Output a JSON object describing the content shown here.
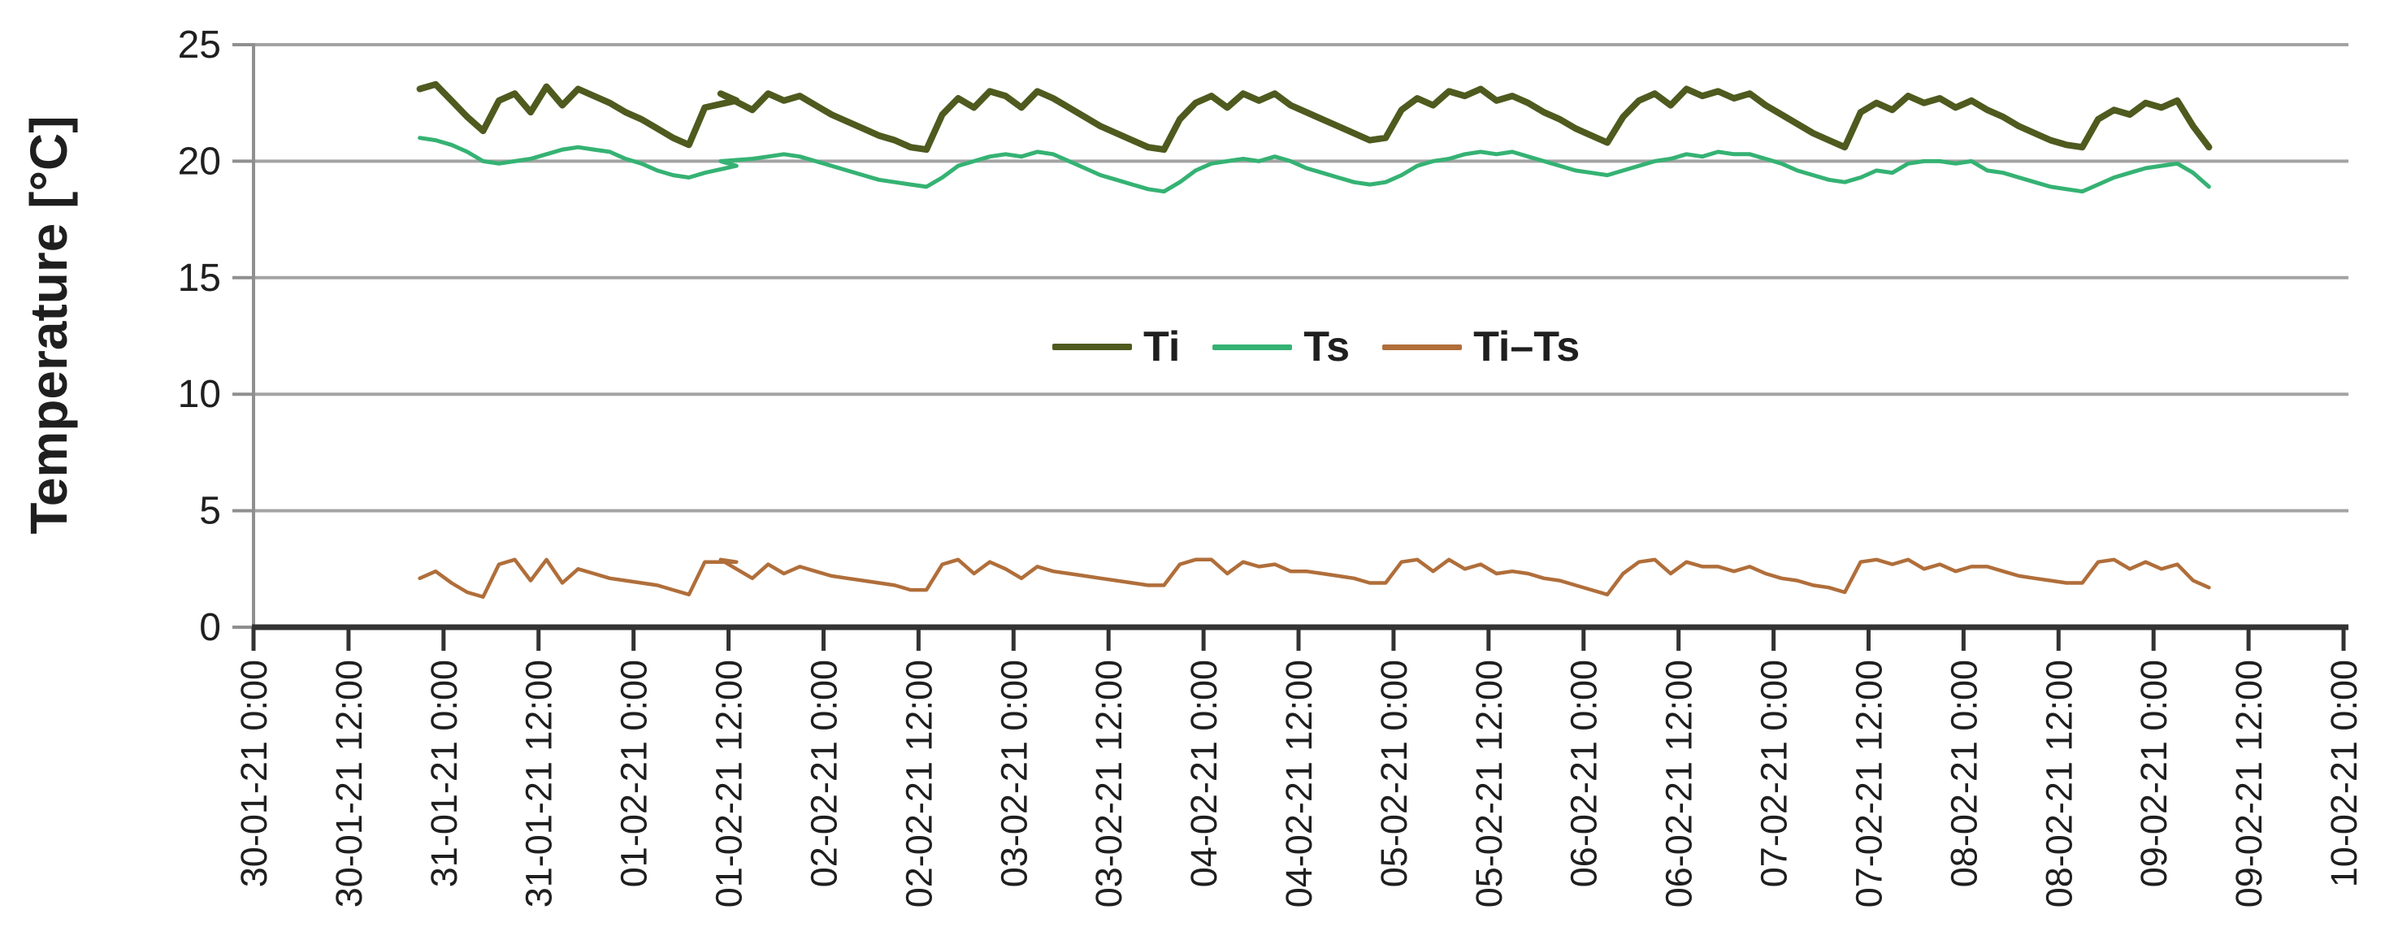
{
  "chart_data": {
    "type": "line",
    "title": "",
    "xlabel": "",
    "ylabel": "Temperature [°C]",
    "ylim": [
      0,
      25
    ],
    "y_ticks": [
      0,
      5,
      10,
      15,
      20,
      25
    ],
    "grid": "horizontal-only",
    "legend_position": "inside-center",
    "x_axis_unit": "date-time, 12 h interval ticks",
    "x_tick_interval_hours": 12,
    "x_tick_labels": [
      "30-01-21 0:00",
      "30-01-21 12:00",
      "31-01-21 0:00",
      "31-01-21 12:00",
      "01-02-21 0:00",
      "01-02-21 12:00",
      "02-02-21 0:00",
      "02-02-21 12:00",
      "03-02-21 0:00",
      "03-02-21 12:00",
      "04-02-21 0:00",
      "04-02-21 12:00",
      "05-02-21 0:00",
      "05-02-21 12:00",
      "06-02-21 0:00",
      "06-02-21 12:00",
      "07-02-21 0:00",
      "07-02-21 12:00",
      "08-02-21 0:00",
      "08-02-21 12:00",
      "09-02-21 0:00",
      "09-02-21 12:00",
      "10-02-21 0:00"
    ],
    "x_hours_since_first_tick": [
      21,
      23,
      25,
      27,
      29,
      31,
      33,
      35,
      37,
      39,
      41,
      43,
      45,
      47,
      49,
      51,
      53,
      55,
      57,
      61,
      59,
      63,
      65,
      67,
      69,
      71,
      73,
      75,
      77,
      79,
      81,
      83,
      85,
      87,
      89,
      91,
      93,
      95,
      97,
      99,
      101,
      103,
      105,
      107,
      109,
      111,
      113,
      115,
      117,
      119,
      121,
      123,
      125,
      127,
      129,
      131,
      133,
      135,
      137,
      139,
      141,
      143,
      145,
      147,
      149,
      151,
      153,
      155,
      157,
      159,
      161,
      163,
      165,
      167,
      169,
      171,
      173,
      175,
      177,
      179,
      181,
      183,
      185,
      187,
      189,
      191,
      193,
      195,
      197,
      199,
      201,
      203,
      205,
      207,
      209,
      211,
      213,
      215,
      217,
      219,
      221,
      223,
      225,
      227,
      229,
      231,
      233,
      235,
      237,
      239,
      241,
      243,
      245,
      247
    ],
    "series": [
      {
        "name": "Ti",
        "color": "#4e5a1e",
        "stroke_width": 8,
        "values": [
          23.1,
          23.3,
          22.6,
          21.9,
          21.3,
          22.6,
          22.9,
          22.1,
          23.2,
          22.4,
          23.1,
          22.8,
          22.5,
          22.1,
          21.8,
          21.4,
          21.0,
          20.7,
          22.3,
          22.6,
          22.9,
          22.2,
          22.9,
          22.6,
          22.8,
          22.4,
          22.0,
          21.7,
          21.4,
          21.1,
          20.9,
          20.6,
          20.5,
          22.0,
          22.7,
          22.3,
          23.0,
          22.8,
          22.3,
          23.0,
          22.7,
          22.3,
          21.9,
          21.5,
          21.2,
          20.9,
          20.6,
          20.5,
          21.8,
          22.5,
          22.8,
          22.3,
          22.9,
          22.6,
          22.9,
          22.4,
          22.1,
          21.8,
          21.5,
          21.2,
          20.9,
          21.0,
          22.2,
          22.7,
          22.4,
          23.0,
          22.8,
          23.1,
          22.6,
          22.8,
          22.5,
          22.1,
          21.8,
          21.4,
          21.1,
          20.8,
          21.9,
          22.6,
          22.9,
          22.4,
          23.1,
          22.8,
          23.0,
          22.7,
          22.9,
          22.4,
          22.0,
          21.6,
          21.2,
          20.9,
          20.6,
          22.1,
          22.5,
          22.2,
          22.8,
          22.5,
          22.7,
          22.3,
          22.6,
          22.2,
          21.9,
          21.5,
          21.2,
          20.9,
          20.7,
          20.6,
          21.8,
          22.2,
          22.0,
          22.5,
          22.3,
          22.6,
          21.5,
          20.6
        ]
      },
      {
        "name": "Ts",
        "color": "#35b273",
        "stroke_width": 5,
        "values": [
          21.0,
          20.9,
          20.7,
          20.4,
          20.0,
          19.9,
          20.0,
          20.1,
          20.3,
          20.5,
          20.6,
          20.5,
          20.4,
          20.1,
          19.9,
          19.6,
          19.4,
          19.3,
          19.5,
          19.8,
          20.0,
          20.1,
          20.2,
          20.3,
          20.2,
          20.0,
          19.8,
          19.6,
          19.4,
          19.2,
          19.1,
          19.0,
          18.9,
          19.3,
          19.8,
          20.0,
          20.2,
          20.3,
          20.2,
          20.4,
          20.3,
          20.0,
          19.7,
          19.4,
          19.2,
          19.0,
          18.8,
          18.7,
          19.1,
          19.6,
          19.9,
          20.0,
          20.1,
          20.0,
          20.2,
          20.0,
          19.7,
          19.5,
          19.3,
          19.1,
          19.0,
          19.1,
          19.4,
          19.8,
          20.0,
          20.1,
          20.3,
          20.4,
          20.3,
          20.4,
          20.2,
          20.0,
          19.8,
          19.6,
          19.5,
          19.4,
          19.6,
          19.8,
          20.0,
          20.1,
          20.3,
          20.2,
          20.4,
          20.3,
          20.3,
          20.1,
          19.9,
          19.6,
          19.4,
          19.2,
          19.1,
          19.3,
          19.6,
          19.5,
          19.9,
          20.0,
          20.0,
          19.9,
          20.0,
          19.6,
          19.5,
          19.3,
          19.1,
          18.9,
          18.8,
          18.7,
          19.0,
          19.3,
          19.5,
          19.7,
          19.8,
          19.9,
          19.5,
          18.9
        ]
      },
      {
        "name": "Ti–Ts",
        "color": "#b06e3a",
        "stroke_width": 4.5,
        "values": [
          2.1,
          2.4,
          1.9,
          1.5,
          1.3,
          2.7,
          2.9,
          2.0,
          2.9,
          1.9,
          2.5,
          2.3,
          2.1,
          2.0,
          1.9,
          1.8,
          1.6,
          1.4,
          2.8,
          2.8,
          2.9,
          2.1,
          2.7,
          2.3,
          2.6,
          2.4,
          2.2,
          2.1,
          2.0,
          1.9,
          1.8,
          1.6,
          1.6,
          2.7,
          2.9,
          2.3,
          2.8,
          2.5,
          2.1,
          2.6,
          2.4,
          2.3,
          2.2,
          2.1,
          2.0,
          1.9,
          1.8,
          1.8,
          2.7,
          2.9,
          2.9,
          2.3,
          2.8,
          2.6,
          2.7,
          2.4,
          2.4,
          2.3,
          2.2,
          2.1,
          1.9,
          1.9,
          2.8,
          2.9,
          2.4,
          2.9,
          2.5,
          2.7,
          2.3,
          2.4,
          2.3,
          2.1,
          2.0,
          1.8,
          1.6,
          1.4,
          2.3,
          2.8,
          2.9,
          2.3,
          2.8,
          2.6,
          2.6,
          2.4,
          2.6,
          2.3,
          2.1,
          2.0,
          1.8,
          1.7,
          1.5,
          2.8,
          2.9,
          2.7,
          2.9,
          2.5,
          2.7,
          2.4,
          2.6,
          2.6,
          2.4,
          2.2,
          2.1,
          2.0,
          1.9,
          1.9,
          2.8,
          2.9,
          2.5,
          2.8,
          2.5,
          2.7,
          2.0,
          1.7
        ]
      }
    ],
    "colors": {
      "gridline": "#a3a3a3",
      "value_axis_line": "#8f8f8f",
      "category_axis_line": "#333333",
      "tick_mark": "#333333",
      "text": "#1f1f1f",
      "background": "#ffffff"
    }
  }
}
